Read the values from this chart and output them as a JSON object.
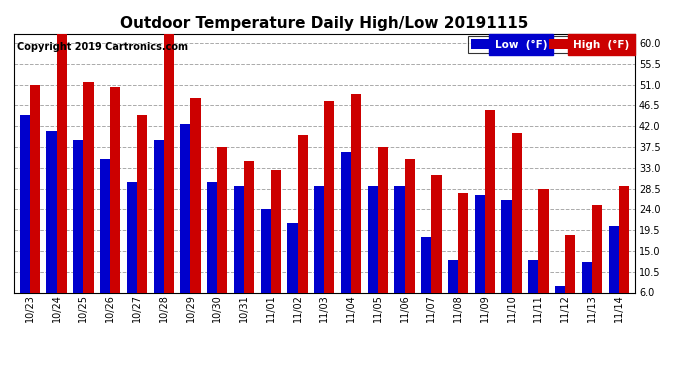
{
  "title": "Outdoor Temperature Daily High/Low 20191115",
  "copyright": "Copyright 2019 Cartronics.com",
  "categories": [
    "10/23",
    "10/24",
    "10/25",
    "10/26",
    "10/27",
    "10/28",
    "10/29",
    "10/30",
    "10/31",
    "11/01",
    "11/02",
    "11/03",
    "11/04",
    "11/05",
    "11/06",
    "11/07",
    "11/08",
    "11/09",
    "11/10",
    "11/11",
    "11/12",
    "11/13",
    "11/14"
  ],
  "low_values": [
    44.5,
    41.0,
    39.0,
    35.0,
    30.0,
    39.0,
    42.5,
    30.0,
    29.0,
    24.0,
    21.0,
    29.0,
    36.5,
    29.0,
    29.0,
    18.0,
    13.0,
    27.0,
    26.0,
    13.0,
    7.5,
    12.5,
    20.5
  ],
  "high_values": [
    51.0,
    62.0,
    51.5,
    50.5,
    44.5,
    62.0,
    48.0,
    37.5,
    34.5,
    32.5,
    40.0,
    47.5,
    49.0,
    37.5,
    35.0,
    31.5,
    27.5,
    45.5,
    40.5,
    28.5,
    18.5,
    25.0,
    29.0
  ],
  "low_color": "#0000CC",
  "high_color": "#CC0000",
  "bg_color": "#FFFFFF",
  "ylim_min": 6.0,
  "ylim_max": 62.0,
  "yticks": [
    6.0,
    10.5,
    15.0,
    19.5,
    24.0,
    28.5,
    33.0,
    37.5,
    42.0,
    46.5,
    51.0,
    55.5,
    60.0
  ],
  "legend_low_label": "Low  (°F)",
  "legend_high_label": "High  (°F)",
  "title_fontsize": 11,
  "copyright_fontsize": 7,
  "bar_width": 0.38,
  "grid_color": "#AAAAAA",
  "tick_fontsize": 7
}
